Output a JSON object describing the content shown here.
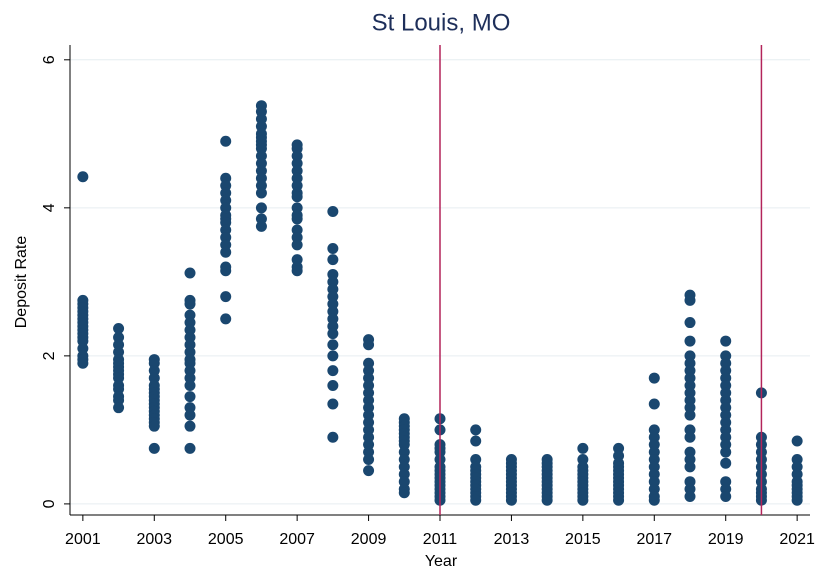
{
  "chart_data": {
    "type": "scatter",
    "title": "St Louis, MO",
    "x_label": "Year",
    "y_label": "Deposit Rate",
    "xlim": [
      2000.64,
      2021.36
    ],
    "ylim": [
      -0.15,
      6.2
    ],
    "xticks": [
      2001,
      2003,
      2005,
      2007,
      2009,
      2011,
      2013,
      2015,
      2017,
      2019,
      2021
    ],
    "yticks": [
      0,
      2,
      4,
      6
    ],
    "grid": true,
    "vlines": [
      2011,
      2020
    ],
    "vline_color": "#b3245a",
    "series": [
      {
        "color": "#1a476f",
        "x": [
          2001,
          2001,
          2001,
          2001,
          2001,
          2001,
          2001,
          2001,
          2001,
          2001,
          2001,
          2001,
          2001,
          2001,
          2001,
          2001,
          2001,
          2002,
          2002,
          2002,
          2002,
          2002,
          2002,
          2002,
          2002,
          2002,
          2002,
          2002,
          2002,
          2002,
          2002,
          2002,
          2003,
          2003,
          2003,
          2003,
          2003,
          2003,
          2003,
          2003,
          2003,
          2003,
          2003,
          2003,
          2003,
          2003,
          2003,
          2003,
          2003,
          2004,
          2004,
          2004,
          2004,
          2004,
          2004,
          2004,
          2004,
          2004,
          2004,
          2004,
          2004,
          2004,
          2004,
          2004,
          2004,
          2004,
          2004,
          2004,
          2005,
          2005,
          2005,
          2005,
          2005,
          2005,
          2005,
          2005,
          2005,
          2005,
          2005,
          2005,
          2005,
          2005,
          2005,
          2005,
          2005,
          2006,
          2006,
          2006,
          2006,
          2006,
          2006,
          2006,
          2006,
          2006,
          2006,
          2006,
          2006,
          2006,
          2006,
          2006,
          2006,
          2006,
          2006,
          2007,
          2007,
          2007,
          2007,
          2007,
          2007,
          2007,
          2007,
          2007,
          2007,
          2007,
          2007,
          2007,
          2007,
          2007,
          2007,
          2007,
          2007,
          2008,
          2008,
          2008,
          2008,
          2008,
          2008,
          2008,
          2008,
          2008,
          2008,
          2008,
          2008,
          2008,
          2008,
          2008,
          2008,
          2008,
          2008,
          2009,
          2009,
          2009,
          2009,
          2009,
          2009,
          2009,
          2009,
          2009,
          2009,
          2009,
          2009,
          2009,
          2009,
          2009,
          2009,
          2009,
          2010,
          2010,
          2010,
          2010,
          2010,
          2010,
          2010,
          2010,
          2010,
          2010,
          2010,
          2010,
          2010,
          2010,
          2010,
          2011,
          2011,
          2011,
          2011,
          2011,
          2011,
          2011,
          2011,
          2011,
          2011,
          2011,
          2011,
          2011,
          2011,
          2011,
          2011,
          2012,
          2012,
          2012,
          2012,
          2012,
          2012,
          2012,
          2012,
          2012,
          2012,
          2012,
          2012,
          2012,
          2013,
          2013,
          2013,
          2013,
          2013,
          2013,
          2013,
          2013,
          2013,
          2013,
          2013,
          2013,
          2014,
          2014,
          2014,
          2014,
          2014,
          2014,
          2014,
          2014,
          2014,
          2014,
          2014,
          2014,
          2015,
          2015,
          2015,
          2015,
          2015,
          2015,
          2015,
          2015,
          2015,
          2015,
          2015,
          2015,
          2016,
          2016,
          2016,
          2016,
          2016,
          2016,
          2016,
          2016,
          2016,
          2016,
          2016,
          2016,
          2016,
          2017,
          2017,
          2017,
          2017,
          2017,
          2017,
          2017,
          2017,
          2017,
          2017,
          2017,
          2017,
          2017,
          2018,
          2018,
          2018,
          2018,
          2018,
          2018,
          2018,
          2018,
          2018,
          2018,
          2018,
          2018,
          2018,
          2018,
          2018,
          2018,
          2018,
          2018,
          2018,
          2018,
          2018,
          2019,
          2019,
          2019,
          2019,
          2019,
          2019,
          2019,
          2019,
          2019,
          2019,
          2019,
          2019,
          2019,
          2019,
          2019,
          2019,
          2019,
          2019,
          2019,
          2020,
          2020,
          2020,
          2020,
          2020,
          2020,
          2020,
          2020,
          2020,
          2020,
          2020,
          2020,
          2021,
          2021,
          2021,
          2021,
          2021,
          2021,
          2021,
          2021,
          2021,
          2021
        ],
        "values": [
          4.42,
          2.75,
          2.7,
          2.65,
          2.6,
          2.55,
          2.5,
          2.45,
          2.4,
          2.35,
          2.3,
          2.25,
          2.2,
          2.1,
          2.0,
          1.95,
          1.9,
          2.37,
          2.25,
          2.15,
          2.05,
          1.95,
          1.9,
          1.85,
          1.8,
          1.75,
          1.7,
          1.6,
          1.55,
          1.45,
          1.4,
          1.3,
          1.95,
          1.9,
          1.8,
          1.7,
          1.6,
          1.55,
          1.5,
          1.45,
          1.4,
          1.35,
          1.3,
          1.25,
          1.2,
          1.15,
          1.1,
          1.05,
          0.75,
          3.12,
          2.75,
          2.7,
          2.55,
          2.45,
          2.35,
          2.25,
          2.15,
          2.05,
          1.95,
          1.9,
          1.8,
          1.7,
          1.6,
          1.45,
          1.3,
          1.2,
          1.05,
          0.75,
          4.9,
          4.4,
          4.3,
          4.2,
          4.1,
          4.0,
          3.9,
          3.85,
          3.8,
          3.7,
          3.6,
          3.5,
          3.4,
          3.2,
          3.15,
          2.8,
          2.5,
          5.38,
          5.3,
          5.2,
          5.1,
          5.0,
          4.95,
          4.9,
          4.85,
          4.8,
          4.7,
          4.6,
          4.5,
          4.4,
          4.3,
          4.2,
          4.0,
          3.85,
          3.75,
          4.85,
          4.8,
          4.7,
          4.6,
          4.5,
          4.4,
          4.3,
          4.2,
          4.15,
          4.0,
          3.9,
          3.85,
          3.7,
          3.6,
          3.5,
          3.3,
          3.2,
          3.15,
          3.95,
          3.45,
          3.3,
          3.1,
          3.0,
          2.9,
          2.8,
          2.7,
          2.6,
          2.5,
          2.4,
          2.3,
          2.15,
          2.0,
          1.8,
          1.6,
          1.35,
          0.9,
          2.22,
          2.15,
          1.9,
          1.8,
          1.7,
          1.6,
          1.5,
          1.4,
          1.3,
          1.2,
          1.1,
          1.0,
          0.9,
          0.8,
          0.7,
          0.6,
          0.45,
          1.15,
          1.1,
          1.05,
          1.0,
          0.95,
          0.9,
          0.85,
          0.8,
          0.7,
          0.6,
          0.5,
          0.4,
          0.3,
          0.2,
          0.15,
          1.15,
          1.0,
          0.8,
          0.75,
          0.7,
          0.6,
          0.5,
          0.45,
          0.4,
          0.35,
          0.3,
          0.25,
          0.2,
          0.15,
          0.1,
          0.05,
          1.0,
          0.85,
          0.6,
          0.5,
          0.45,
          0.4,
          0.35,
          0.3,
          0.25,
          0.2,
          0.15,
          0.1,
          0.05,
          0.6,
          0.55,
          0.5,
          0.45,
          0.4,
          0.35,
          0.3,
          0.25,
          0.2,
          0.15,
          0.1,
          0.05,
          0.6,
          0.55,
          0.5,
          0.45,
          0.4,
          0.35,
          0.3,
          0.25,
          0.2,
          0.15,
          0.1,
          0.05,
          0.75,
          0.6,
          0.5,
          0.45,
          0.4,
          0.35,
          0.3,
          0.25,
          0.2,
          0.15,
          0.1,
          0.05,
          0.75,
          0.65,
          0.55,
          0.5,
          0.45,
          0.4,
          0.35,
          0.3,
          0.25,
          0.2,
          0.15,
          0.1,
          0.05,
          1.7,
          1.35,
          1.0,
          0.9,
          0.8,
          0.7,
          0.6,
          0.5,
          0.4,
          0.3,
          0.2,
          0.1,
          0.05,
          2.82,
          2.75,
          2.45,
          2.2,
          2.0,
          1.9,
          1.8,
          1.7,
          1.6,
          1.5,
          1.4,
          1.3,
          1.2,
          1.0,
          0.9,
          0.7,
          0.6,
          0.5,
          0.3,
          0.2,
          0.1,
          2.2,
          2.0,
          1.9,
          1.8,
          1.7,
          1.6,
          1.5,
          1.4,
          1.3,
          1.2,
          1.1,
          1.0,
          0.9,
          0.8,
          0.7,
          0.55,
          0.3,
          0.2,
          0.1,
          1.5,
          0.9,
          0.8,
          0.7,
          0.6,
          0.5,
          0.4,
          0.3,
          0.2,
          0.15,
          0.1,
          0.05,
          0.85,
          0.6,
          0.5,
          0.4,
          0.3,
          0.25,
          0.2,
          0.15,
          0.1,
          0.05
        ]
      }
    ]
  }
}
